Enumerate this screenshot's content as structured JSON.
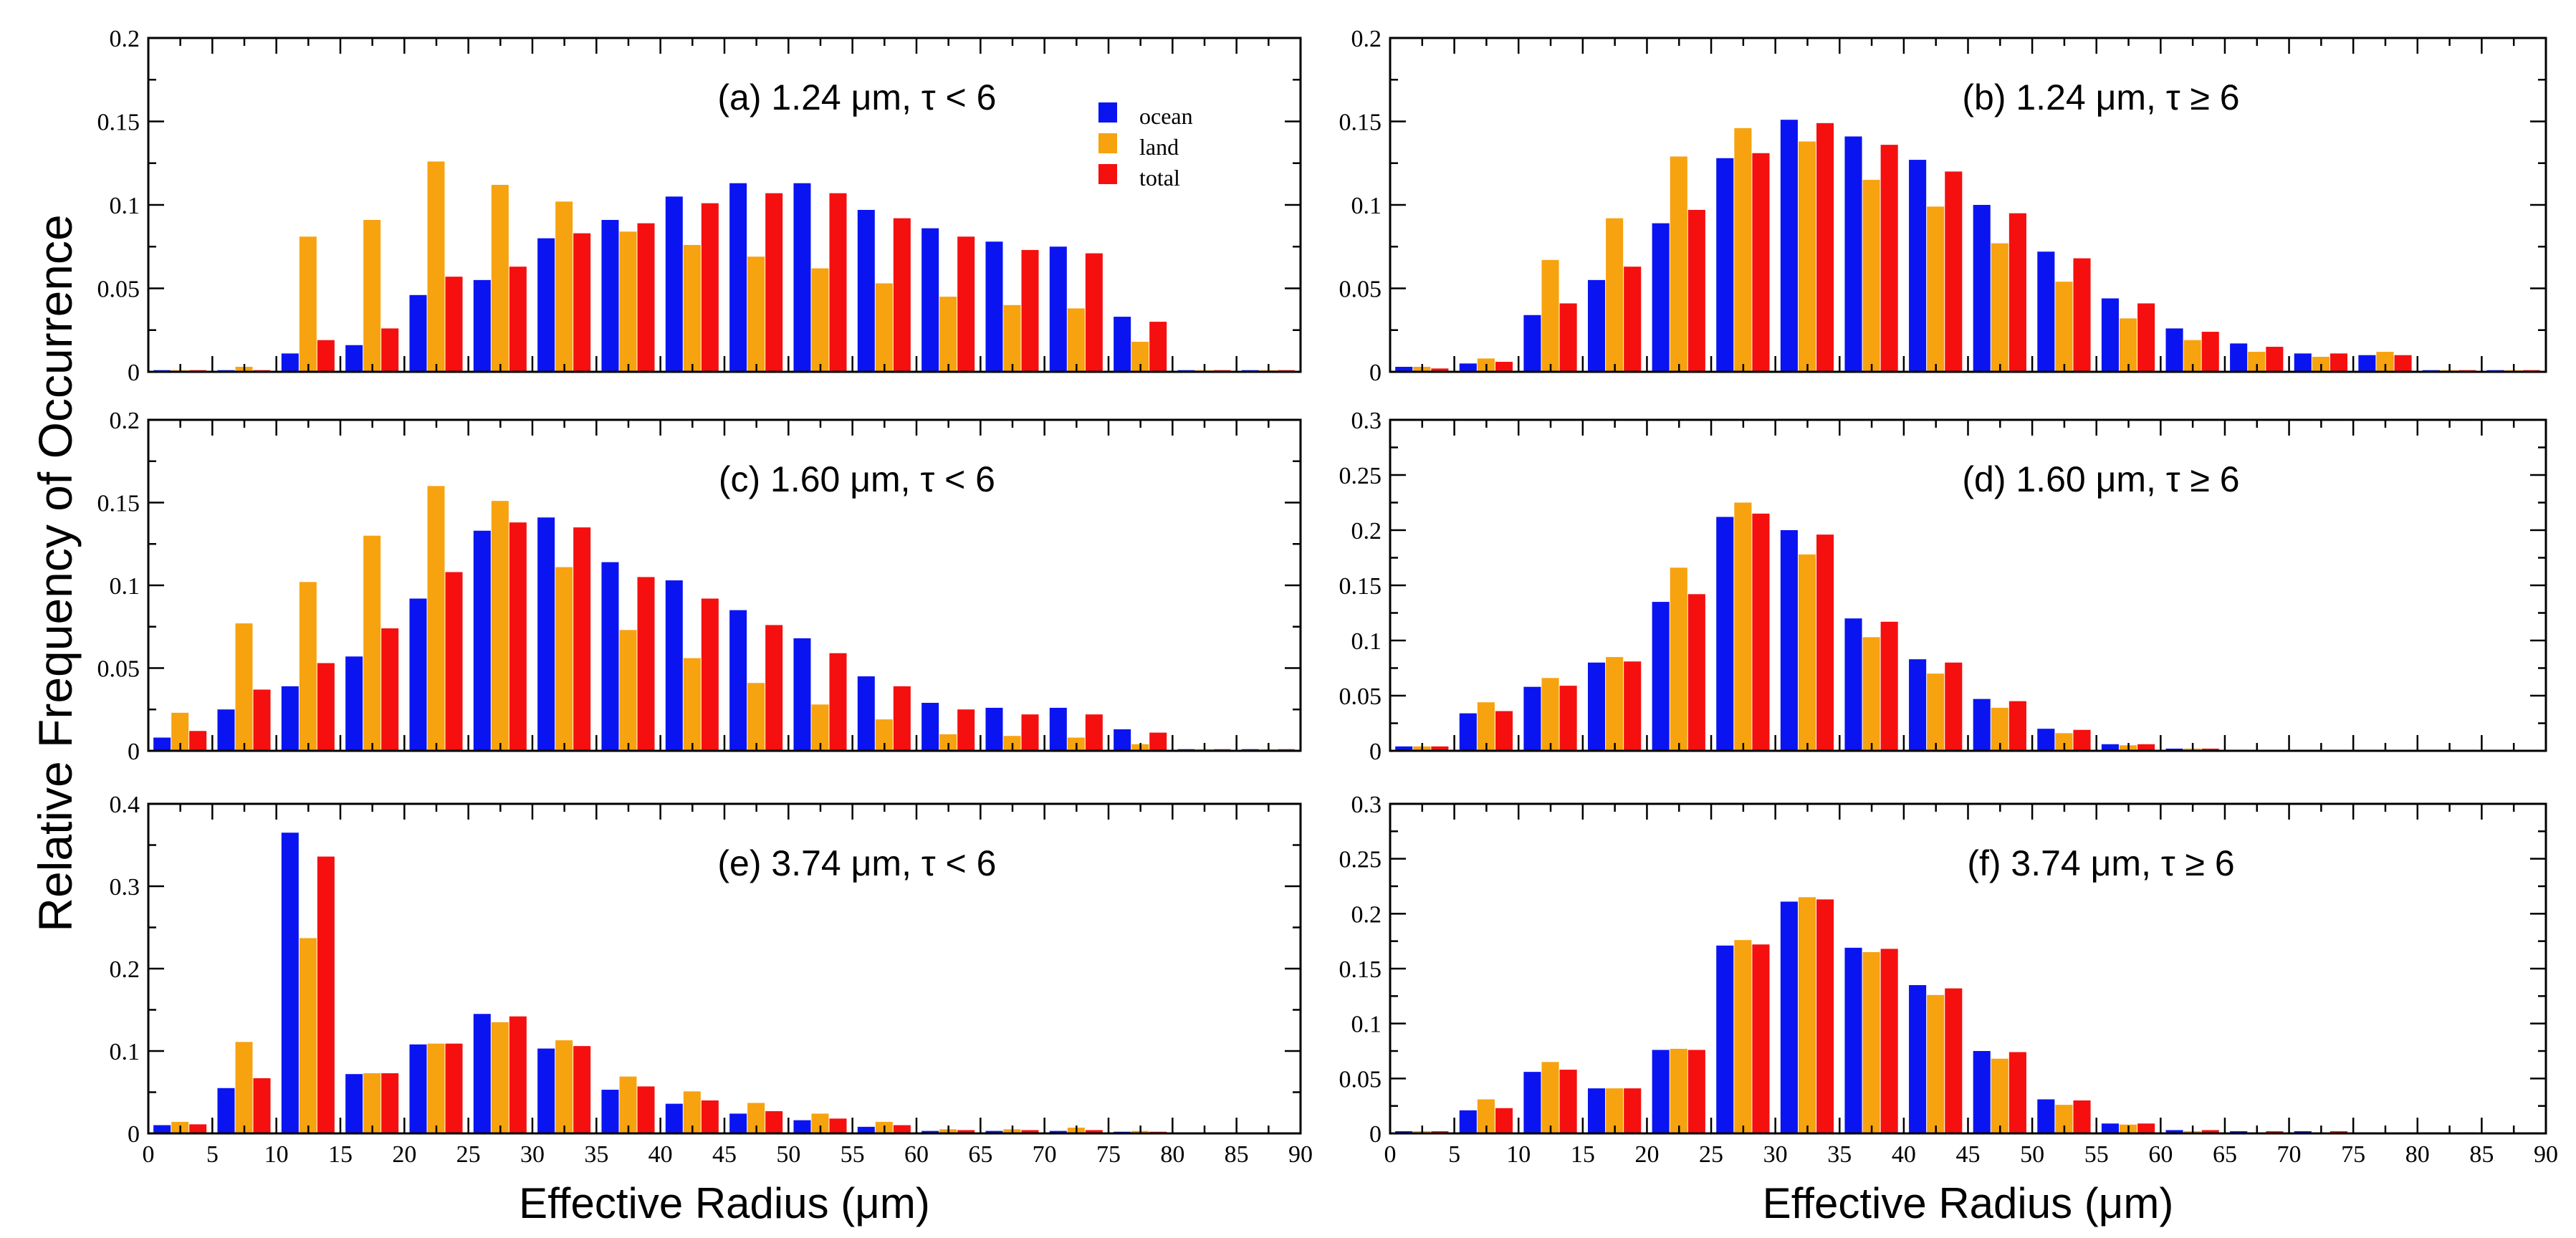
{
  "figure": {
    "ylabel": "Relative Frequency of Occurrence",
    "xlabel": "Effective Radius (μm)"
  },
  "legend": [
    {
      "name": "ocean",
      "color": "#0a14f0"
    },
    {
      "name": "land",
      "color": "#f7a20f"
    },
    {
      "name": "total",
      "color": "#f50f0f"
    }
  ],
  "chart_data": [
    {
      "id": "a",
      "type": "bar",
      "title": "(a) 1.24 μm, τ < 6",
      "ylim": [
        0,
        0.2
      ],
      "yticks": [
        "0",
        "0.05",
        "0.1",
        "0.15",
        "0.2"
      ],
      "xlim": [
        0,
        90
      ],
      "xticks": [
        "0",
        "5",
        "10",
        "15",
        "20",
        "25",
        "30",
        "35",
        "40",
        "45",
        "50",
        "55",
        "60",
        "65",
        "70",
        "75",
        "80",
        "85",
        "90"
      ],
      "show_xticklabels": false,
      "show_xlabel": false,
      "bin_centers": [
        2.5,
        7.5,
        12.5,
        17.5,
        22.5,
        27.5,
        32.5,
        37.5,
        42.5,
        47.5,
        52.5,
        57.5,
        62.5,
        67.5,
        72.5,
        77.5,
        82.5,
        87.5
      ],
      "series": [
        {
          "name": "ocean",
          "values": [
            0.001,
            0.001,
            0.011,
            0.016,
            0.046,
            0.055,
            0.08,
            0.091,
            0.105,
            0.113,
            0.113,
            0.097,
            0.086,
            0.078,
            0.075,
            0.033,
            0.001,
            0.001
          ]
        },
        {
          "name": "land",
          "values": [
            0.001,
            0.003,
            0.081,
            0.091,
            0.126,
            0.112,
            0.102,
            0.084,
            0.076,
            0.069,
            0.062,
            0.053,
            0.045,
            0.04,
            0.038,
            0.018,
            0.001,
            0.001
          ]
        },
        {
          "name": "total",
          "values": [
            0.001,
            0.001,
            0.019,
            0.026,
            0.057,
            0.063,
            0.083,
            0.089,
            0.101,
            0.107,
            0.107,
            0.092,
            0.081,
            0.073,
            0.071,
            0.03,
            0.001,
            0.001
          ]
        }
      ]
    },
    {
      "id": "b",
      "type": "bar",
      "title": "(b) 1.24 μm, τ ≥ 6",
      "ylim": [
        0,
        0.2
      ],
      "yticks": [
        "0",
        "0.05",
        "0.1",
        "0.15",
        "0.2"
      ],
      "xlim": [
        0,
        90
      ],
      "xticks": [
        "0",
        "5",
        "10",
        "15",
        "20",
        "25",
        "30",
        "35",
        "40",
        "45",
        "50",
        "55",
        "60",
        "65",
        "70",
        "75",
        "80",
        "85",
        "90"
      ],
      "show_xticklabels": false,
      "show_xlabel": false,
      "bin_centers": [
        2.5,
        7.5,
        12.5,
        17.5,
        22.5,
        27.5,
        32.5,
        37.5,
        42.5,
        47.5,
        52.5,
        57.5,
        62.5,
        67.5,
        72.5,
        77.5,
        82.5,
        87.5
      ],
      "series": [
        {
          "name": "ocean",
          "values": [
            0.003,
            0.005,
            0.034,
            0.055,
            0.089,
            0.128,
            0.151,
            0.141,
            0.127,
            0.1,
            0.072,
            0.044,
            0.026,
            0.017,
            0.011,
            0.01,
            0.001,
            0.001
          ]
        },
        {
          "name": "land",
          "values": [
            0.003,
            0.008,
            0.067,
            0.092,
            0.129,
            0.146,
            0.138,
            0.115,
            0.099,
            0.077,
            0.054,
            0.032,
            0.019,
            0.012,
            0.009,
            0.012,
            0.001,
            0.001
          ]
        },
        {
          "name": "total",
          "values": [
            0.002,
            0.006,
            0.041,
            0.063,
            0.097,
            0.131,
            0.149,
            0.136,
            0.12,
            0.095,
            0.068,
            0.041,
            0.024,
            0.015,
            0.011,
            0.01,
            0.001,
            0.001
          ]
        }
      ]
    },
    {
      "id": "c",
      "type": "bar",
      "title": "(c) 1.60 μm, τ < 6",
      "ylim": [
        0,
        0.2
      ],
      "yticks": [
        "0",
        "0.05",
        "0.1",
        "0.15",
        "0.2"
      ],
      "xlim": [
        0,
        90
      ],
      "xticks": [
        "0",
        "5",
        "10",
        "15",
        "20",
        "25",
        "30",
        "35",
        "40",
        "45",
        "50",
        "55",
        "60",
        "65",
        "70",
        "75",
        "80",
        "85",
        "90"
      ],
      "show_xticklabels": false,
      "show_xlabel": false,
      "bin_centers": [
        2.5,
        7.5,
        12.5,
        17.5,
        22.5,
        27.5,
        32.5,
        37.5,
        42.5,
        47.5,
        52.5,
        57.5,
        62.5,
        67.5,
        72.5,
        77.5,
        82.5,
        87.5
      ],
      "series": [
        {
          "name": "ocean",
          "values": [
            0.008,
            0.025,
            0.039,
            0.057,
            0.092,
            0.133,
            0.141,
            0.114,
            0.103,
            0.085,
            0.068,
            0.045,
            0.029,
            0.026,
            0.026,
            0.013,
            0.001,
            0.001
          ]
        },
        {
          "name": "land",
          "values": [
            0.023,
            0.077,
            0.102,
            0.13,
            0.16,
            0.151,
            0.111,
            0.073,
            0.056,
            0.041,
            0.028,
            0.019,
            0.01,
            0.009,
            0.008,
            0.004,
            0.001,
            0.001
          ]
        },
        {
          "name": "total",
          "values": [
            0.012,
            0.037,
            0.053,
            0.074,
            0.108,
            0.138,
            0.135,
            0.105,
            0.092,
            0.076,
            0.059,
            0.039,
            0.025,
            0.022,
            0.022,
            0.011,
            0.001,
            0.001
          ]
        }
      ]
    },
    {
      "id": "d",
      "type": "bar",
      "title": "(d) 1.60 μm, τ ≥ 6",
      "ylim": [
        0,
        0.3
      ],
      "yticks": [
        "0",
        "0.05",
        "0.1",
        "0.15",
        "0.2",
        "0.25",
        "0.3"
      ],
      "xlim": [
        0,
        90
      ],
      "xticks": [
        "0",
        "5",
        "10",
        "15",
        "20",
        "25",
        "30",
        "35",
        "40",
        "45",
        "50",
        "55",
        "60",
        "65",
        "70",
        "75",
        "80",
        "85",
        "90"
      ],
      "show_xticklabels": false,
      "show_xlabel": false,
      "bin_centers": [
        2.5,
        7.5,
        12.5,
        17.5,
        22.5,
        27.5,
        32.5,
        37.5,
        42.5,
        47.5,
        52.5,
        57.5,
        62.5,
        67.5,
        72.5,
        77.5,
        82.5,
        87.5
      ],
      "series": [
        {
          "name": "ocean",
          "values": [
            0.004,
            0.034,
            0.058,
            0.08,
            0.135,
            0.212,
            0.2,
            0.12,
            0.083,
            0.047,
            0.02,
            0.006,
            0.002,
            0.001,
            0.001,
            0.001,
            0.001,
            0.001
          ]
        },
        {
          "name": "land",
          "values": [
            0.004,
            0.044,
            0.066,
            0.085,
            0.166,
            0.225,
            0.178,
            0.103,
            0.07,
            0.039,
            0.016,
            0.005,
            0.002,
            0.001,
            0.001,
            0.001,
            0.001,
            0.001
          ]
        },
        {
          "name": "total",
          "values": [
            0.004,
            0.036,
            0.059,
            0.081,
            0.142,
            0.215,
            0.196,
            0.117,
            0.08,
            0.045,
            0.019,
            0.006,
            0.002,
            0.001,
            0.001,
            0.001,
            0.001,
            0.001
          ]
        }
      ]
    },
    {
      "id": "e",
      "type": "bar",
      "title": "(e) 3.74 μm, τ < 6",
      "ylim": [
        0,
        0.4
      ],
      "yticks": [
        "0",
        "0.1",
        "0.2",
        "0.3",
        "0.4"
      ],
      "xlim": [
        0,
        90
      ],
      "xticks": [
        "0",
        "5",
        "10",
        "15",
        "20",
        "25",
        "30",
        "35",
        "40",
        "45",
        "50",
        "55",
        "60",
        "65",
        "70",
        "75",
        "80",
        "85",
        "90"
      ],
      "show_xticklabels": true,
      "show_xlabel": true,
      "bin_centers": [
        2.5,
        7.5,
        12.5,
        17.5,
        22.5,
        27.5,
        32.5,
        37.5,
        42.5,
        47.5,
        52.5,
        57.5,
        62.5,
        67.5,
        72.5,
        77.5,
        82.5,
        87.5
      ],
      "series": [
        {
          "name": "ocean",
          "values": [
            0.01,
            0.055,
            0.365,
            0.072,
            0.108,
            0.145,
            0.103,
            0.053,
            0.036,
            0.024,
            0.016,
            0.008,
            0.003,
            0.003,
            0.003,
            0.002,
            0.001,
            0.001
          ]
        },
        {
          "name": "land",
          "values": [
            0.014,
            0.111,
            0.237,
            0.073,
            0.109,
            0.135,
            0.113,
            0.069,
            0.051,
            0.037,
            0.024,
            0.014,
            0.005,
            0.005,
            0.007,
            0.003,
            0.001,
            0.001
          ]
        },
        {
          "name": "total",
          "values": [
            0.011,
            0.067,
            0.336,
            0.073,
            0.109,
            0.142,
            0.106,
            0.057,
            0.04,
            0.027,
            0.018,
            0.01,
            0.004,
            0.004,
            0.004,
            0.002,
            0.001,
            0.001
          ]
        }
      ]
    },
    {
      "id": "f",
      "type": "bar",
      "title": "(f) 3.74 μm, τ ≥ 6",
      "ylim": [
        0,
        0.3
      ],
      "yticks": [
        "0",
        "0.05",
        "0.1",
        "0.15",
        "0.2",
        "0.25",
        "0.3"
      ],
      "xlim": [
        0,
        90
      ],
      "xticks": [
        "0",
        "5",
        "10",
        "15",
        "20",
        "25",
        "30",
        "35",
        "40",
        "45",
        "50",
        "55",
        "60",
        "65",
        "70",
        "75",
        "80",
        "85",
        "90"
      ],
      "show_xticklabels": true,
      "show_xlabel": true,
      "bin_centers": [
        2.5,
        7.5,
        12.5,
        17.5,
        22.5,
        27.5,
        32.5,
        37.5,
        42.5,
        47.5,
        52.5,
        57.5,
        62.5,
        67.5,
        72.5,
        77.5,
        82.5,
        87.5
      ],
      "series": [
        {
          "name": "ocean",
          "values": [
            0.002,
            0.021,
            0.056,
            0.041,
            0.076,
            0.171,
            0.211,
            0.169,
            0.135,
            0.075,
            0.031,
            0.009,
            0.003,
            0.002,
            0.002,
            0.001,
            0.001,
            0.001
          ]
        },
        {
          "name": "land",
          "values": [
            0.002,
            0.031,
            0.065,
            0.041,
            0.077,
            0.176,
            0.215,
            0.165,
            0.126,
            0.068,
            0.026,
            0.008,
            0.002,
            0.001,
            0.001,
            0.001,
            0.001,
            0.001
          ]
        },
        {
          "name": "total",
          "values": [
            0.002,
            0.023,
            0.058,
            0.041,
            0.076,
            0.172,
            0.213,
            0.168,
            0.132,
            0.074,
            0.03,
            0.009,
            0.003,
            0.002,
            0.002,
            0.001,
            0.001,
            0.001
          ]
        }
      ]
    }
  ]
}
